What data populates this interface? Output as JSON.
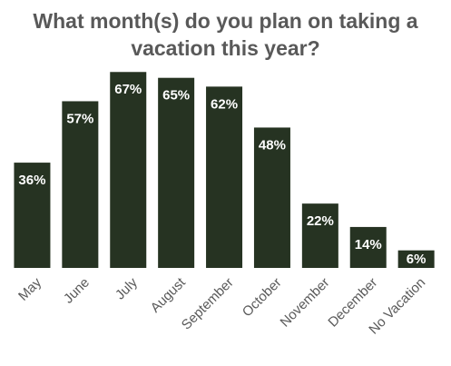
{
  "chart_data": {
    "type": "bar",
    "title": "What month(s) do you plan on taking a vacation this year?",
    "categories": [
      "May",
      "June",
      "July",
      "August",
      "September",
      "October",
      "November",
      "December",
      "No Vacation"
    ],
    "values": [
      36,
      57,
      67,
      65,
      62,
      48,
      22,
      14,
      6
    ],
    "value_labels": [
      "36%",
      "57%",
      "67%",
      "65%",
      "62%",
      "48%",
      "22%",
      "14%",
      "6%"
    ],
    "color": "#263322"
  }
}
